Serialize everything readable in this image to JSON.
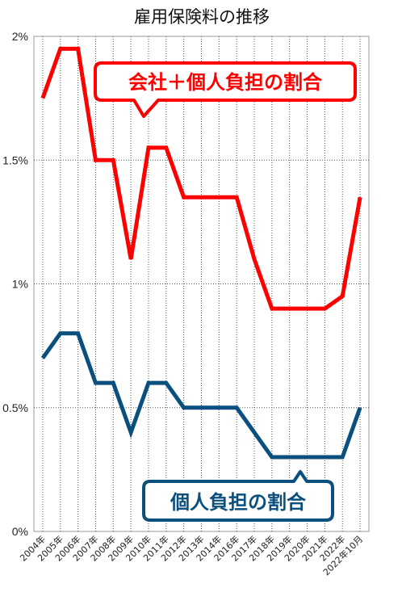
{
  "chart_data": {
    "type": "line",
    "title": "雇用保険料の推移",
    "categories": [
      "2004年",
      "2005年",
      "2006年",
      "2007年",
      "2008年",
      "2009年",
      "2010年",
      "2011年",
      "2012年",
      "2013年",
      "2014年",
      "2016年",
      "2017年",
      "2018年",
      "2019年",
      "2020年",
      "2021年",
      "2022年",
      "2022年10月"
    ],
    "yticks": [
      "0%",
      "0.5%",
      "1%",
      "1.5%",
      "2%"
    ],
    "ylim": [
      0,
      2
    ],
    "grid": true,
    "series": [
      {
        "name": "会社＋個人負担の割合",
        "color": "#ff0000",
        "values": [
          1.75,
          1.95,
          1.95,
          1.5,
          1.5,
          1.1,
          1.55,
          1.55,
          1.35,
          1.35,
          1.35,
          1.35,
          1.1,
          0.9,
          0.9,
          0.9,
          0.9,
          0.95,
          1.35
        ],
        "x": [
          0,
          1,
          2,
          3,
          4,
          5,
          6,
          7,
          8,
          9,
          10,
          11,
          12,
          13,
          14,
          15,
          16,
          17,
          18
        ]
      },
      {
        "name": "個人負担の割合",
        "color": "#0a4f7e",
        "values": [
          0.7,
          0.8,
          0.8,
          0.6,
          0.6,
          0.4,
          0.6,
          0.6,
          0.5,
          0.5,
          0.5,
          0.5,
          0.4,
          0.3,
          0.3,
          0.3,
          0.3,
          0.3,
          0.5
        ],
        "x": [
          0,
          1,
          2,
          3,
          4,
          5,
          6,
          7,
          8,
          9,
          10,
          11,
          12,
          13,
          14,
          15,
          16,
          17,
          18
        ]
      }
    ]
  }
}
